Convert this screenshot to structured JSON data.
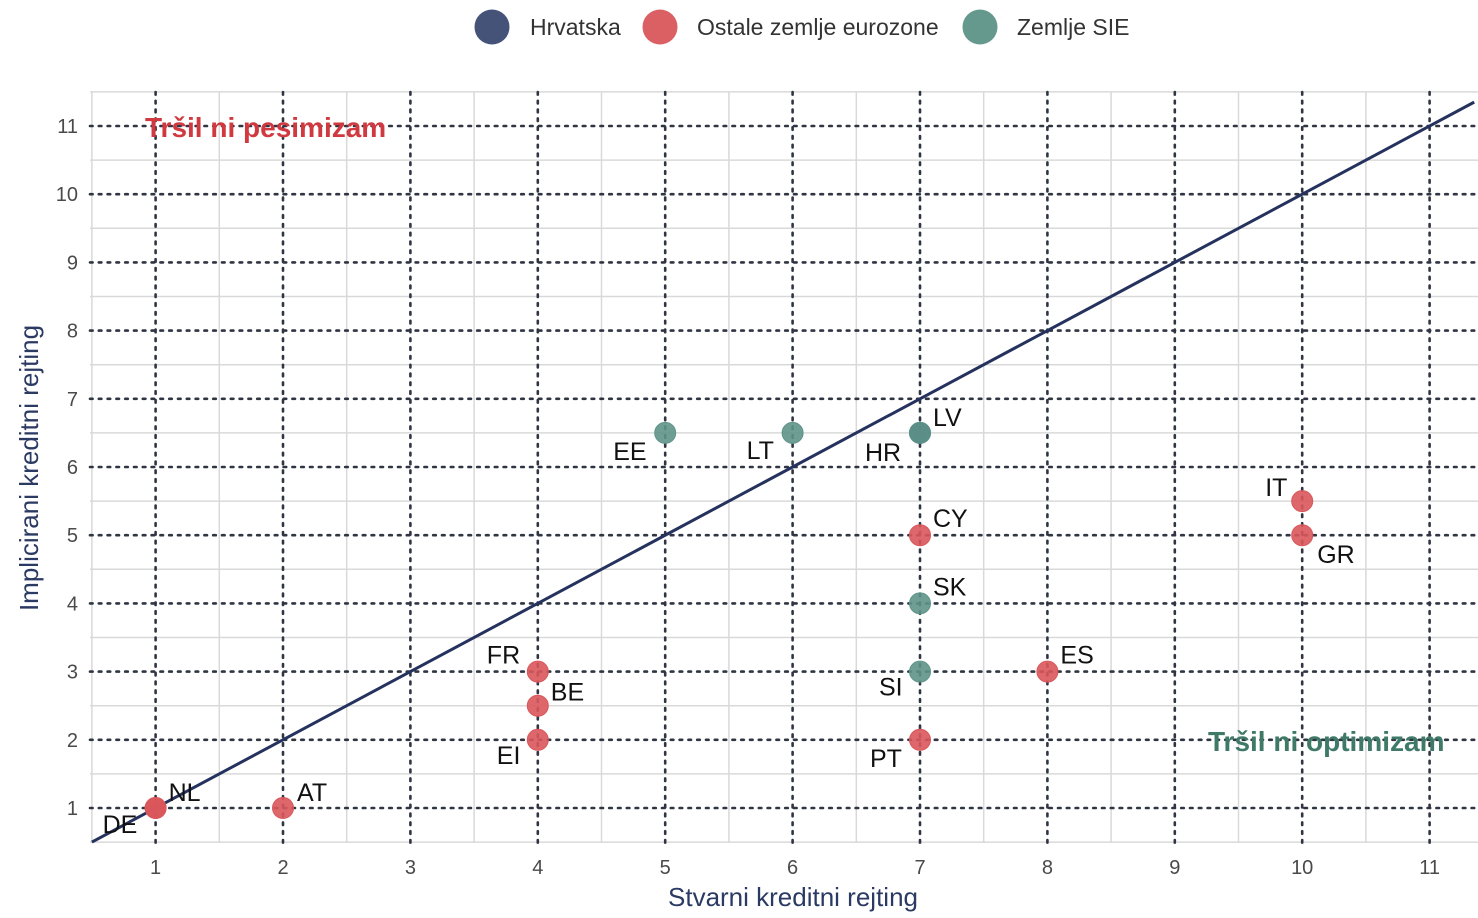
{
  "chart_data": {
    "type": "scatter",
    "xlabel": "Stvarni kreditni rejting",
    "ylabel": "Implicirani kreditni rejting",
    "xlim": [
      0.5,
      11.35
    ],
    "ylim": [
      0.5,
      11.5
    ],
    "xticks": [
      "1",
      "2",
      "3",
      "4",
      "5",
      "6",
      "7",
      "8",
      "9",
      "10",
      "11"
    ],
    "yticks": [
      "1",
      "2",
      "3",
      "4",
      "5",
      "6",
      "7",
      "8",
      "9",
      "10",
      "11"
    ],
    "grid": true,
    "legend_position": "top",
    "reference_line": "y = x",
    "series": [
      {
        "name": "Hrvatska",
        "color": "#3b4a72",
        "points": [
          {
            "label": "HR",
            "x": 7,
            "y": 6.5
          }
        ]
      },
      {
        "name": "Ostale zemlje eurozone",
        "color": "#d9575b",
        "points": [
          {
            "label": "DE",
            "x": 1,
            "y": 1
          },
          {
            "label": "NL",
            "x": 1,
            "y": 1
          },
          {
            "label": "AT",
            "x": 2,
            "y": 1
          },
          {
            "label": "FR",
            "x": 4,
            "y": 3
          },
          {
            "label": "BE",
            "x": 4,
            "y": 2.5
          },
          {
            "label": "EI",
            "x": 4,
            "y": 2
          },
          {
            "label": "CY",
            "x": 7,
            "y": 5
          },
          {
            "label": "PT",
            "x": 7,
            "y": 2
          },
          {
            "label": "ES",
            "x": 8,
            "y": 3
          },
          {
            "label": "IT",
            "x": 10,
            "y": 5.5
          },
          {
            "label": "GR",
            "x": 10,
            "y": 5
          }
        ]
      },
      {
        "name": "Zemlje SIE",
        "color": "#5e9488",
        "points": [
          {
            "label": "EE",
            "x": 5,
            "y": 6.5
          },
          {
            "label": "LT",
            "x": 6,
            "y": 6.5
          },
          {
            "label": "LV",
            "x": 7,
            "y": 6.5
          },
          {
            "label": "SK",
            "x": 7,
            "y": 4
          },
          {
            "label": "SI",
            "x": 7,
            "y": 3
          }
        ]
      }
    ],
    "annotations": [
      {
        "text": "Tršil ni pesimizam",
        "color": "#d0393f"
      },
      {
        "text": "Tršil ni optimizam",
        "color": "#3f7a68"
      }
    ]
  }
}
